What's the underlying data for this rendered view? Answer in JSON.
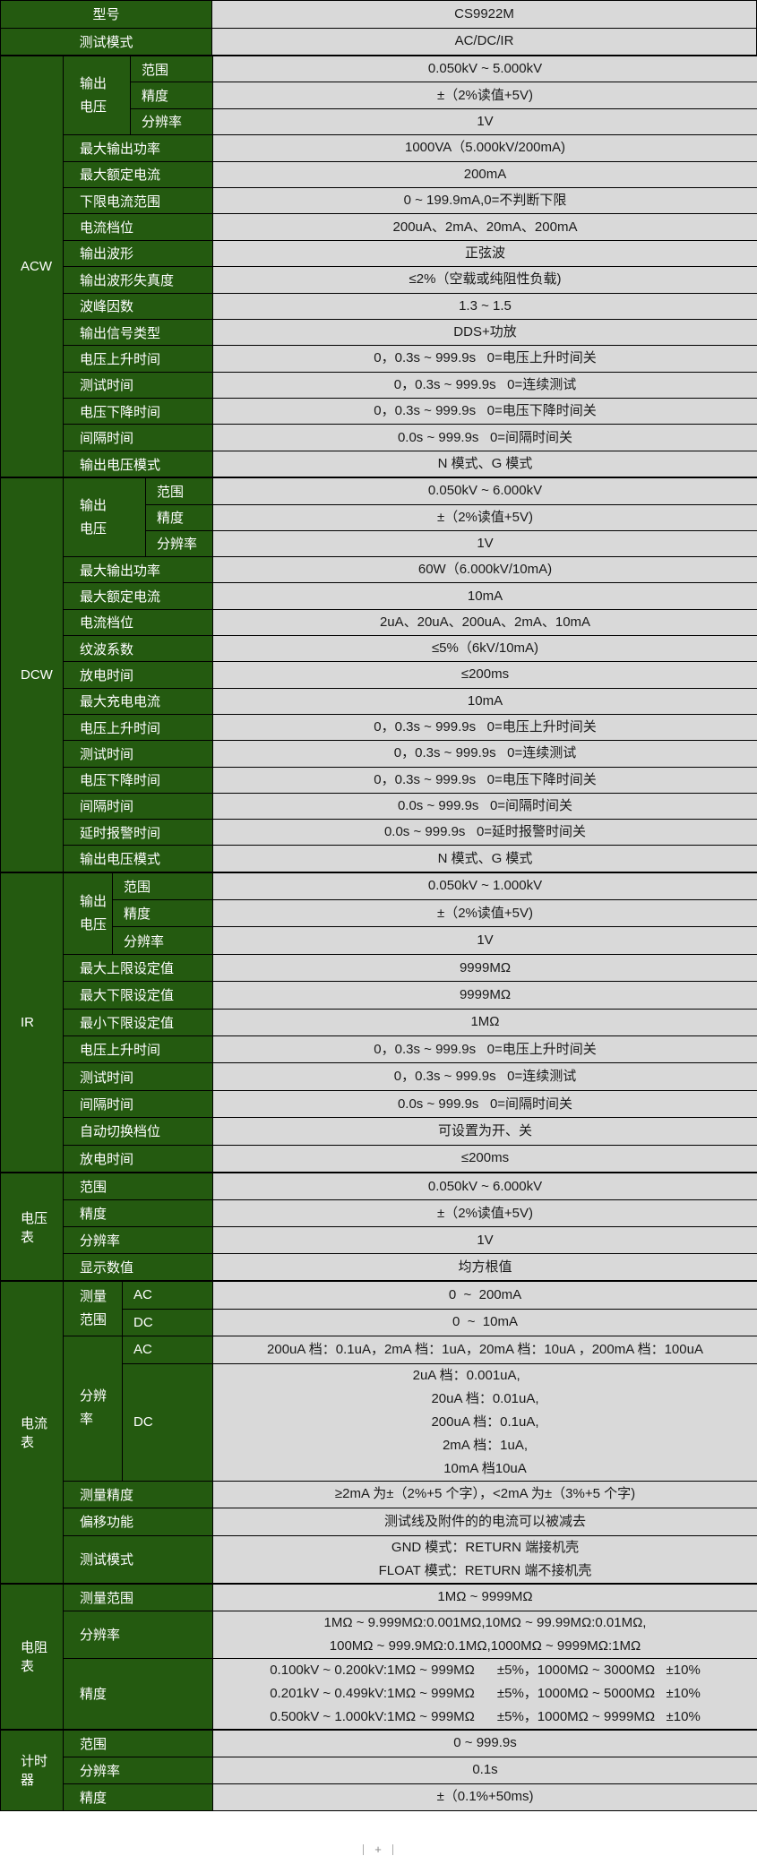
{
  "header": [
    {
      "label": "型号",
      "value": "CS9922M"
    },
    {
      "label": "测试模式",
      "value": "AC/DC/IR"
    }
  ],
  "sections": [
    {
      "name": "ACW",
      "cls": "acw",
      "rows": [
        {
          "group": [
            "输出",
            "电压"
          ],
          "items": [
            {
              "label": "范围",
              "value": "0.050kV ~ 5.000kV"
            },
            {
              "label": "精度",
              "value": "±（2%读值+5V)"
            },
            {
              "label": "分辨率",
              "value": "1V"
            }
          ]
        },
        {
          "label": "最大输出功率",
          "value": "1000VA（5.000kV/200mA)"
        },
        {
          "label": "最大额定电流",
          "value": "200mA"
        },
        {
          "label": "下限电流范围",
          "value": "0 ~ 199.9mA,0=不判断下限"
        },
        {
          "label": "电流档位",
          "value": "200uA、2mA、20mA、200mA"
        },
        {
          "label": "输出波形",
          "value": "正弦波"
        },
        {
          "label": "输出波形失真度",
          "value": "≤2%（空载或纯阻性负载)"
        },
        {
          "label": "波峰因数",
          "value": "1.3 ~ 1.5"
        },
        {
          "label": "输出信号类型",
          "value": "DDS+功放"
        },
        {
          "label": "电压上升时间",
          "value": "0，0.3s ~ 999.9s   0=电压上升时间关"
        },
        {
          "label": "测试时间",
          "value": "0，0.3s ~ 999.9s   0=连续测试"
        },
        {
          "label": "电压下降时间",
          "value": "0，0.3s ~ 999.9s   0=电压下降时间关"
        },
        {
          "label": "间隔时间",
          "value": "0.0s ~ 999.9s   0=间隔时间关"
        },
        {
          "label": "输出电压模式",
          "value": "N 模式、G 模式"
        }
      ]
    },
    {
      "name": "DCW",
      "cls": "dcw",
      "rows": [
        {
          "group": [
            "输出",
            "电压"
          ],
          "items": [
            {
              "label": "范围",
              "value": "0.050kV ~ 6.000kV"
            },
            {
              "label": "精度",
              "value": "±（2%读值+5V)"
            },
            {
              "label": "分辨率",
              "value": "1V"
            }
          ]
        },
        {
          "label": "最大输出功率",
          "value": "60W（6.000kV/10mA)"
        },
        {
          "label": "最大额定电流",
          "value": "10mA"
        },
        {
          "label": "电流档位",
          "value": "2uA、20uA、200uA、2mA、10mA"
        },
        {
          "label": "纹波系数",
          "value": "≤5%（6kV/10mA)"
        },
        {
          "label": "放电时间",
          "value": "≤200ms"
        },
        {
          "label": "最大充电电流",
          "value": "10mA"
        },
        {
          "label": "电压上升时间",
          "value": "0，0.3s ~ 999.9s   0=电压上升时间关"
        },
        {
          "label": "测试时间",
          "value": "0，0.3s ~ 999.9s   0=连续测试"
        },
        {
          "label": "电压下降时间",
          "value": "0，0.3s ~ 999.9s   0=电压下降时间关"
        },
        {
          "label": "间隔时间",
          "value": "0.0s ~ 999.9s   0=间隔时间关"
        },
        {
          "label": "延时报警时间",
          "value": "0.0s ~ 999.9s   0=延时报警时间关"
        },
        {
          "label": "输出电压模式",
          "value": "N 模式、G 模式"
        }
      ]
    },
    {
      "name": "IR",
      "cls": "ir",
      "rows": [
        {
          "group": [
            "输出",
            "电压"
          ],
          "items": [
            {
              "label": "范围",
              "value": "0.050kV ~ 1.000kV"
            },
            {
              "label": "精度",
              "value": "±（2%读值+5V)"
            },
            {
              "label": "分辨率",
              "value": "1V"
            }
          ]
        },
        {
          "label": "最大上限设定值",
          "value": "9999MΩ"
        },
        {
          "label": "最大下限设定值",
          "value": "9999MΩ"
        },
        {
          "label": "最小下限设定值",
          "value": "1MΩ"
        },
        {
          "label": "电压上升时间",
          "value": "0，0.3s ~ 999.9s   0=电压上升时间关"
        },
        {
          "label": "测试时间",
          "value": "0，0.3s ~ 999.9s   0=连续测试"
        },
        {
          "label": "间隔时间",
          "value": "0.0s ~ 999.9s   0=间隔时间关"
        },
        {
          "label": "自动切换档位",
          "value": "可设置为开、关"
        },
        {
          "label": "放电时间",
          "value": "≤200ms"
        }
      ]
    },
    {
      "name": "电压表",
      "cls": "gen",
      "rows": [
        {
          "label": "范围",
          "value": "0.050kV ~ 6.000kV"
        },
        {
          "label": "精度",
          "value": "±（2%读值+5V)"
        },
        {
          "label": "分辨率",
          "value": "1V"
        },
        {
          "label": "显示数值",
          "value": "均方根值"
        }
      ]
    },
    {
      "name": "电流表",
      "cls": "cur",
      "rows": [
        {
          "group": [
            "测量",
            "范围"
          ],
          "items": [
            {
              "label": "AC",
              "value": "0  ~  200mA"
            },
            {
              "label": "DC",
              "value": "0  ~  10mA"
            }
          ]
        },
        {
          "group": [
            "分辨率"
          ],
          "items": [
            {
              "label": "AC",
              "value": "200uA 档：0.1uA，2mA 档：1uA，20mA 档：10uA ，200mA 档：100uA"
            },
            {
              "label": "DC",
              "value": [
                "2uA 档：0.001uA,          ",
                "20uA 档：0.01uA,",
                "200uA 档：0.1uA,",
                "2mA 档：1uA,",
                "10mA 档10uA"
              ]
            }
          ]
        },
        {
          "label": "测量精度",
          "value": "≥2mA 为±（2%+5 个字），<2mA 为±（3%+5 个字)"
        },
        {
          "label": "偏移功能",
          "value": "测试线及附件的的电流可以被减去"
        },
        {
          "label": "测试模式",
          "value": [
            "GND 模式：RETURN 端接机壳",
            "FLOAT 模式：RETURN 端不接机壳"
          ]
        }
      ]
    },
    {
      "name": "电阻表",
      "cls": "gen",
      "rows": [
        {
          "label": "测量范围",
          "value": "1MΩ ~ 9999MΩ"
        },
        {
          "label": "分辨率",
          "value": [
            "1MΩ ~ 9.999MΩ:0.001MΩ,10MΩ ~ 99.99MΩ:0.01MΩ,",
            "100MΩ ~ 999.9MΩ:0.1MΩ,1000MΩ ~ 9999MΩ:1MΩ"
          ]
        },
        {
          "label": "精度",
          "value": [
            "0.100kV ~ 0.200kV:1MΩ ~ 999MΩ      ±5%，1000MΩ ~ 3000MΩ   ±10%",
            "0.201kV ~ 0.499kV:1MΩ ~ 999MΩ      ±5%，1000MΩ ~ 5000MΩ   ±10%",
            "0.500kV ~ 1.000kV:1MΩ ~ 999MΩ      ±5%，1000MΩ ~ 9999MΩ   ±10%"
          ]
        }
      ]
    },
    {
      "name": "计时器",
      "cls": "gen",
      "rows": [
        {
          "label": "范围",
          "value": "0 ~ 999.9s"
        },
        {
          "label": "分辨率",
          "value": "0.1s"
        },
        {
          "label": "精度",
          "value": "±（0.1%+50ms)"
        }
      ]
    }
  ],
  "footer": {
    "add_sheet_label": "+"
  },
  "colors": {
    "label_bg": "#245a10",
    "value_bg": "#d9d9d9",
    "border": "#000000"
  }
}
